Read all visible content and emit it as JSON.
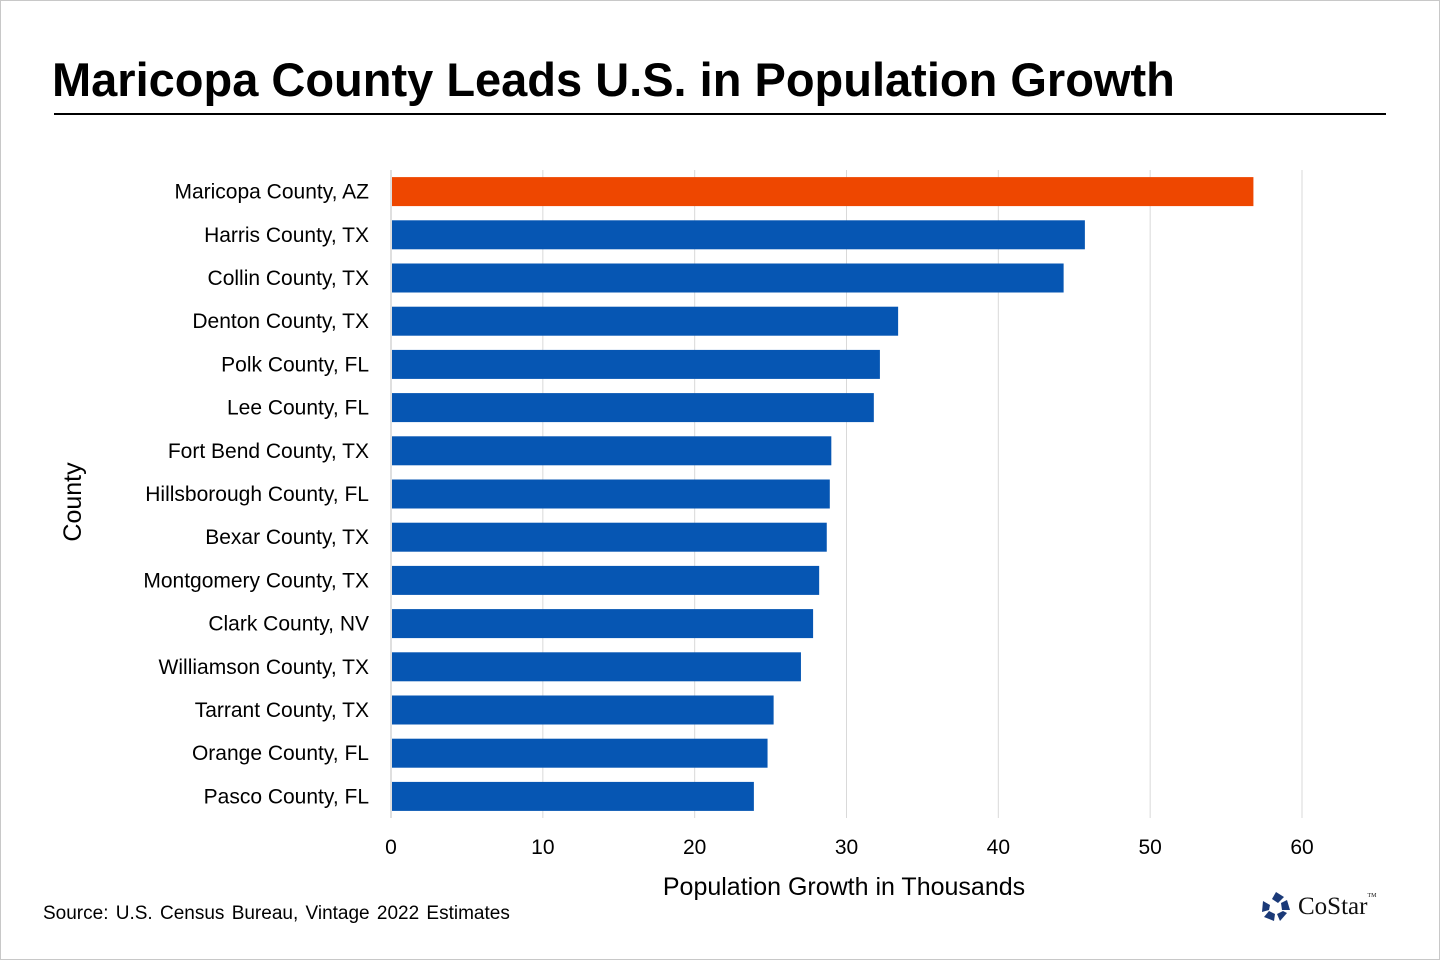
{
  "chart_data": {
    "type": "bar",
    "orientation": "horizontal",
    "title": "Maricopa County Leads U.S. in Population Growth",
    "xlabel": "Population Growth in Thousands",
    "ylabel": "County",
    "xlim": [
      0,
      60
    ],
    "xticks": [
      0,
      10,
      20,
      30,
      40,
      50,
      60
    ],
    "grid": true,
    "categories": [
      "Maricopa County, AZ",
      "Harris County, TX",
      "Collin County, TX",
      "Denton County, TX",
      "Polk County, FL",
      "Lee County, FL",
      "Fort Bend County, TX",
      "Hillsborough County, FL",
      "Bexar County, TX",
      "Montgomery County, TX",
      "Clark County, NV",
      "Williamson County, TX",
      "Tarrant County, TX",
      "Orange County, FL",
      "Pasco County, FL"
    ],
    "values": [
      56.8,
      45.7,
      44.3,
      33.4,
      32.2,
      31.8,
      29.0,
      28.9,
      28.7,
      28.2,
      27.8,
      27.0,
      25.2,
      24.8,
      23.9
    ],
    "colors": {
      "highlight": "#EE4700",
      "default": "#0656B3"
    },
    "highlight_index": 0
  },
  "source": "Source: U.S. Census Bureau, Vintage 2022 Estimates",
  "logo": {
    "text": "CoStar",
    "tm": "TM"
  }
}
